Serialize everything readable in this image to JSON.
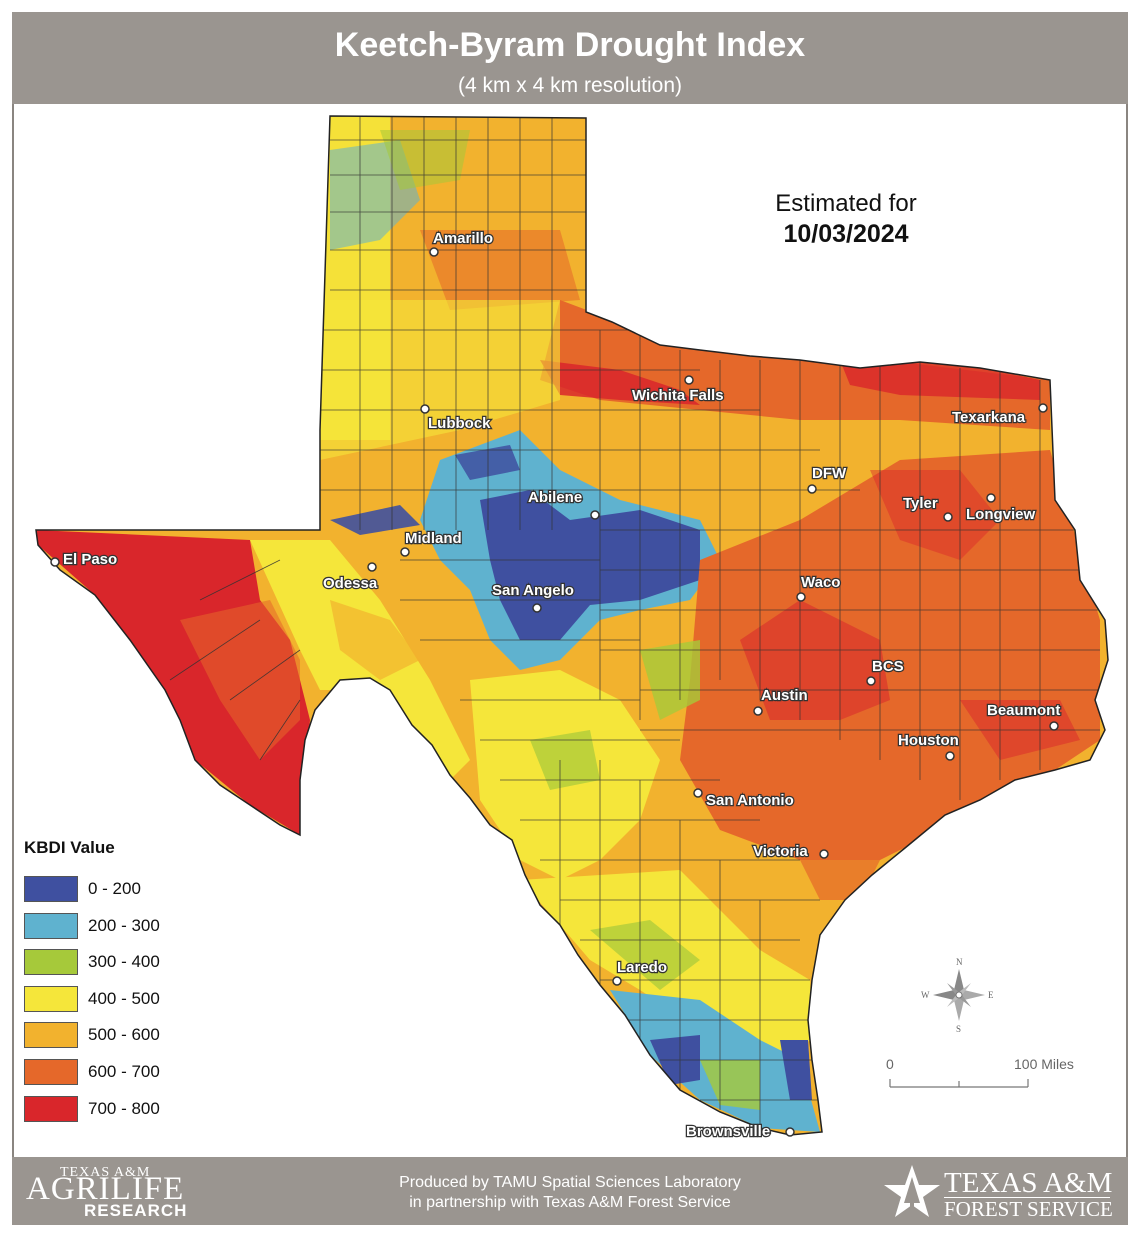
{
  "header": {
    "title": "Keetch-Byram Drought Index",
    "subtitle": "(4 km x 4 km resolution)"
  },
  "estimate": {
    "label": "Estimated for",
    "date": "10/03/2024"
  },
  "legend": {
    "title": "KBDI Value",
    "classes": [
      {
        "label": "0 - 200",
        "color": "#3f50a0"
      },
      {
        "label": "200 - 300",
        "color": "#5fb2cf"
      },
      {
        "label": "300 - 400",
        "color": "#a6c93a"
      },
      {
        "label": "400 - 500",
        "color": "#f5e63a"
      },
      {
        "label": "500 - 600",
        "color": "#f2b22e"
      },
      {
        "label": "600 - 700",
        "color": "#e5682a"
      },
      {
        "label": "700 - 800",
        "color": "#d9262b"
      }
    ]
  },
  "cities": [
    {
      "name": "Amarillo"
    },
    {
      "name": "Lubbock"
    },
    {
      "name": "Wichita Falls"
    },
    {
      "name": "Texarkana"
    },
    {
      "name": "DFW"
    },
    {
      "name": "Tyler"
    },
    {
      "name": "Longview"
    },
    {
      "name": "Abilene"
    },
    {
      "name": "Midland"
    },
    {
      "name": "Odessa"
    },
    {
      "name": "El Paso"
    },
    {
      "name": "San Angelo"
    },
    {
      "name": "Waco"
    },
    {
      "name": "BCS"
    },
    {
      "name": "Austin"
    },
    {
      "name": "Beaumont"
    },
    {
      "name": "Houston"
    },
    {
      "name": "San Antonio"
    },
    {
      "name": "Victoria"
    },
    {
      "name": "Laredo"
    },
    {
      "name": "Brownsville"
    }
  ],
  "compass": {
    "n": "N",
    "s": "S",
    "e": "E",
    "w": "W"
  },
  "scale_bar": {
    "start": "0",
    "end": "100 Miles"
  },
  "footer": {
    "credit_line1": "Produced by TAMU Spatial Sciences Laboratory",
    "credit_line2": "in partnership with Texas A&M Forest Service",
    "logo_left_line1": "TEXAS A&M",
    "logo_left_line2": "AGRILIFE",
    "logo_left_line3": "RESEARCH",
    "logo_right_line1": "TEXAS A&M",
    "logo_right_line2": "FOREST SERVICE"
  }
}
